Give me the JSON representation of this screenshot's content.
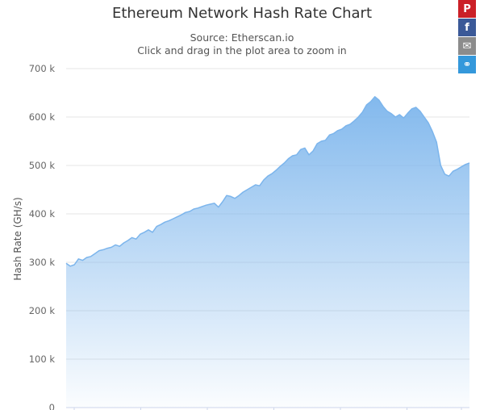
{
  "chart_data": {
    "type": "area",
    "title": "Ethereum Network Hash Rate Chart",
    "subtitle_source": "Source: Etherscan.io",
    "subtitle_zoom": "Click and drag in the plot area to zoom in",
    "ylabel": "Hash Rate (GH/s)",
    "ylim": [
      0,
      700000
    ],
    "y_ticks": [
      {
        "value": 0,
        "label": "0"
      },
      {
        "value": 100000,
        "label": "100 k"
      },
      {
        "value": 200000,
        "label": "200 k"
      },
      {
        "value": 300000,
        "label": "300 k"
      },
      {
        "value": 400000,
        "label": "400 k"
      },
      {
        "value": 500000,
        "label": "500 k"
      },
      {
        "value": 600000,
        "label": "600 k"
      },
      {
        "value": 700000,
        "label": "700 k"
      }
    ],
    "grid": true,
    "series_color": "#7cb5ec",
    "values": [
      298000,
      292000,
      295000,
      307000,
      304000,
      310000,
      312000,
      318000,
      324000,
      326000,
      329000,
      331000,
      336000,
      333000,
      340000,
      345000,
      351000,
      348000,
      358000,
      362000,
      367000,
      362000,
      374000,
      378000,
      383000,
      386000,
      390000,
      394000,
      398000,
      403000,
      405000,
      410000,
      412000,
      415000,
      418000,
      420000,
      422000,
      414000,
      425000,
      438000,
      436000,
      432000,
      438000,
      445000,
      450000,
      455000,
      460000,
      458000,
      470000,
      478000,
      483000,
      490000,
      498000,
      505000,
      514000,
      520000,
      522000,
      533000,
      536000,
      522000,
      530000,
      545000,
      550000,
      552000,
      563000,
      566000,
      572000,
      575000,
      582000,
      585000,
      592000,
      600000,
      610000,
      625000,
      632000,
      642000,
      635000,
      622000,
      612000,
      607000,
      600000,
      605000,
      598000,
      608000,
      617000,
      620000,
      612000,
      600000,
      588000,
      570000,
      548000,
      500000,
      482000,
      478000,
      488000,
      492000,
      497000,
      502000,
      505000
    ]
  },
  "share": [
    {
      "name": "pinterest",
      "glyph": "P",
      "color": "#cb2027"
    },
    {
      "name": "facebook",
      "glyph": "f",
      "color": "#3b5998"
    },
    {
      "name": "email",
      "glyph": "✉",
      "color": "#8c8c8c"
    },
    {
      "name": "link",
      "glyph": "⚭",
      "color": "#3498db"
    }
  ]
}
